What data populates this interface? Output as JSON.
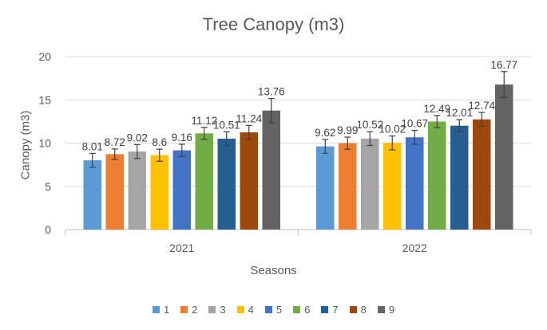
{
  "chart_data": {
    "type": "bar",
    "title": "Tree Canopy (m3)",
    "xlabel": "Seasons",
    "ylabel": "Canopy (m3)",
    "ylim": [
      0,
      20
    ],
    "yticks": [
      0,
      5,
      10,
      15,
      20
    ],
    "grid": true,
    "legend_position": "bottom",
    "categories": [
      "2021",
      "2022"
    ],
    "series": [
      {
        "name": "1",
        "color": "#5B9BD5",
        "values": [
          8.01,
          9.62
        ],
        "labels": [
          "8.01",
          "9.62"
        ],
        "errors": [
          0.8,
          0.8
        ]
      },
      {
        "name": "2",
        "color": "#ED7D31",
        "values": [
          8.72,
          9.99
        ],
        "labels": [
          "8.72",
          "9.99"
        ],
        "errors": [
          0.6,
          0.7
        ]
      },
      {
        "name": "3",
        "color": "#A5A5A5",
        "values": [
          9.02,
          10.52
        ],
        "labels": [
          "9.02",
          "10.52"
        ],
        "errors": [
          0.8,
          0.8
        ]
      },
      {
        "name": "4",
        "color": "#FFC000",
        "values": [
          8.6,
          10.02
        ],
        "labels": [
          "8.6",
          "10.02"
        ],
        "errors": [
          0.7,
          0.8
        ]
      },
      {
        "name": "5",
        "color": "#4472C4",
        "values": [
          9.16,
          10.67
        ],
        "labels": [
          "9.16",
          "10.67"
        ],
        "errors": [
          0.7,
          0.8
        ]
      },
      {
        "name": "6",
        "color": "#70AD47",
        "values": [
          11.12,
          12.49
        ],
        "labels": [
          "11.12",
          "12.49"
        ],
        "errors": [
          0.7,
          0.7
        ]
      },
      {
        "name": "7",
        "color": "#255E91",
        "values": [
          10.51,
          12.01
        ],
        "labels": [
          "10.51",
          "12.01"
        ],
        "errors": [
          0.8,
          0.7
        ]
      },
      {
        "name": "8",
        "color": "#9E480E",
        "values": [
          11.24,
          12.74
        ],
        "labels": [
          "11.24",
          "12.74"
        ],
        "errors": [
          0.8,
          0.8
        ]
      },
      {
        "name": "9",
        "color": "#636363",
        "values": [
          13.76,
          16.77
        ],
        "labels": [
          "13.76",
          "16.77"
        ],
        "errors": [
          1.4,
          1.5
        ]
      }
    ]
  }
}
